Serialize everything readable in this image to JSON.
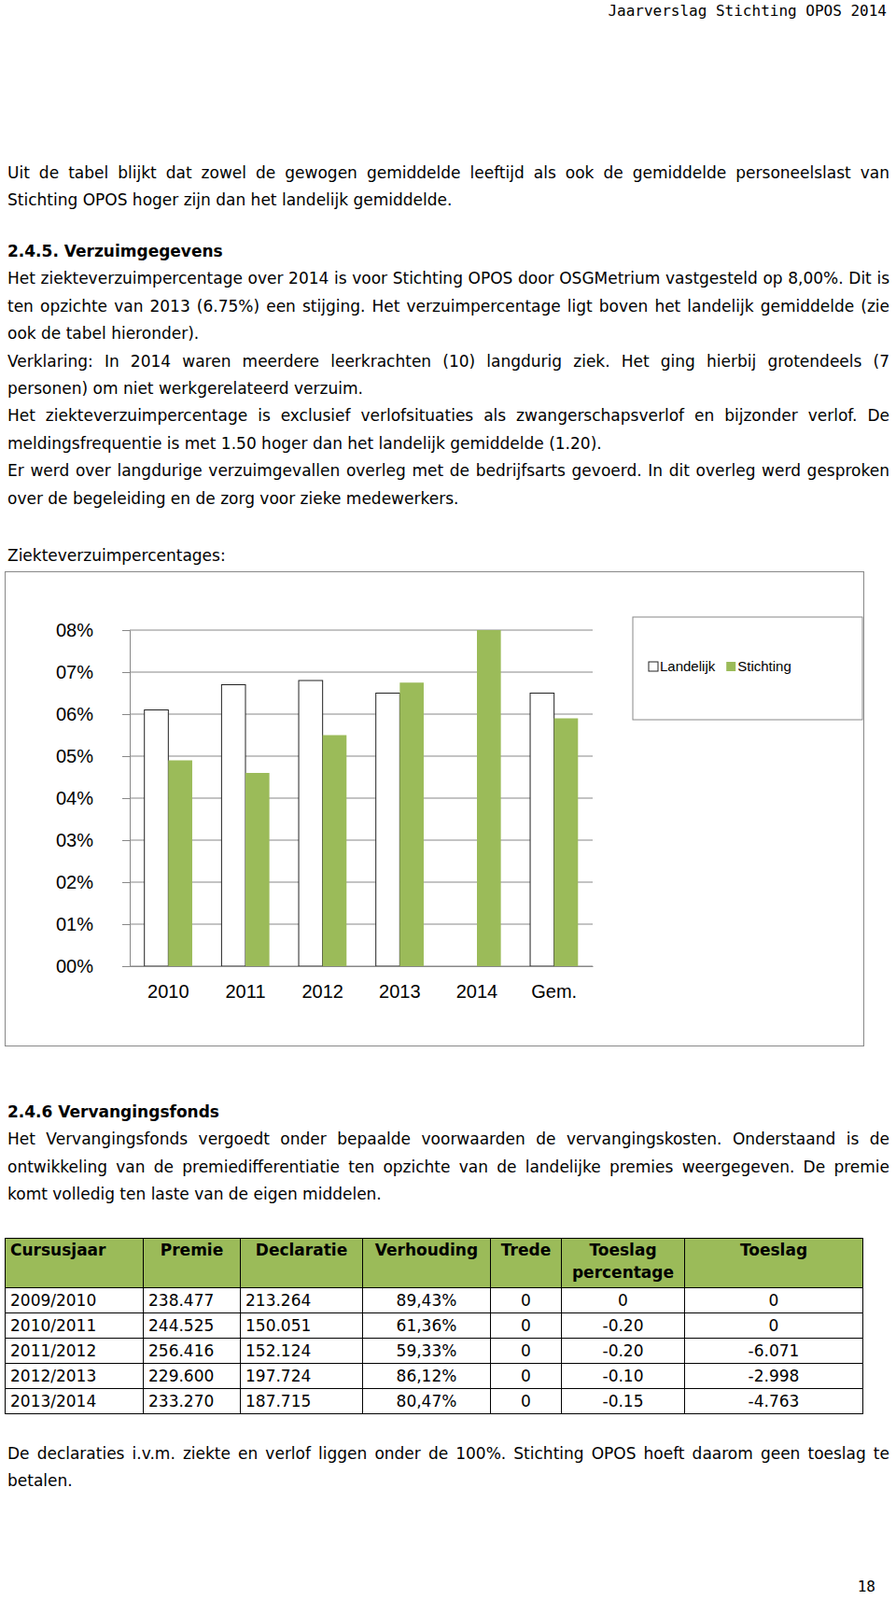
{
  "header": {
    "title": "Jaarverslag Stichting OPOS 2014"
  },
  "intro": "Uit de tabel blijkt dat zowel de gewogen gemiddelde leeftijd als ook de gemiddelde personeelslast van Stichting OPOS hoger zijn dan het landelijk gemiddelde.",
  "section_1": {
    "heading": "2.4.5. Verzuimgegevens",
    "paragraphs": [
      "Het ziekteverzuimpercentage over 2014 is voor Stichting OPOS door OSGMetrium vastgesteld op 8,00%. Dit is ten opzichte van 2013 (6.75%) een stijging. Het verzuimpercentage ligt boven het landelijk gemiddelde (zie ook de tabel hieronder).",
      "Verklaring: In 2014 waren meerdere leerkrachten (10) langdurig ziek. Het ging hierbij grotendeels (7 personen) om niet werkgerelateerd verzuim.",
      "Het ziekteverzuimpercentage is exclusief verlofsituaties als zwangerschapsverlof en bijzonder verlof. De meldingsfrequentie is met 1.50 hoger dan het landelijk gemiddelde (1.20).",
      "Er werd over langdurige verzuimgevallen overleg met de bedrijfsarts gevoerd. In dit overleg werd gesproken over de begeleiding en de zorg voor zieke medewerkers."
    ]
  },
  "chart_data": {
    "type": "bar",
    "title": "Ziekteverzuimpercentages:",
    "categories": [
      "2010",
      "2011",
      "2012",
      "2013",
      "2014",
      "Gem."
    ],
    "series": [
      {
        "name": "Landelijk",
        "color": "#ffffff",
        "values": [
          6.1,
          6.7,
          6.8,
          6.5,
          null,
          6.5
        ]
      },
      {
        "name": "Stichting",
        "color": "#9bbb59",
        "values": [
          4.9,
          4.6,
          5.5,
          6.75,
          8.0,
          5.9
        ]
      }
    ],
    "ylim": [
      0,
      8
    ],
    "yticks": [
      {
        "value": 0,
        "label": "00%"
      },
      {
        "value": 1,
        "label": "01%"
      },
      {
        "value": 2,
        "label": "02%"
      },
      {
        "value": 3,
        "label": "03%"
      },
      {
        "value": 4,
        "label": "04%"
      },
      {
        "value": 5,
        "label": "05%"
      },
      {
        "value": 6,
        "label": "06%"
      },
      {
        "value": 7,
        "label": "07%"
      },
      {
        "value": 8,
        "label": "08%"
      }
    ],
    "grid": true,
    "legend": "right"
  },
  "section_2": {
    "heading": "2.4.6 Vervangingsfonds",
    "paragraphs": [
      "Het Vervangingsfonds vergoedt onder bepaalde voorwaarden de vervangingskosten. Onderstaand is de ontwikkeling van de premiedifferentiatie ten opzichte van de landelijke premies weergegeven. De premie komt volledig ten laste van de eigen middelen."
    ]
  },
  "table": {
    "header": [
      "Cursusjaar",
      "Premie",
      "Declaratie",
      "Verhouding",
      "Trede",
      "Toeslag percentage",
      "Toeslag"
    ],
    "rows": [
      [
        "2009/2010",
        "238.477",
        "213.264",
        "89,43%",
        "0",
        "0",
        "0"
      ],
      [
        "2010/2011",
        "244.525",
        "150.051",
        "61,36%",
        "0",
        "-0.20",
        "0"
      ],
      [
        "2011/2012",
        "256.416",
        "152.124",
        "59,33%",
        "0",
        "-0.20",
        "-6.071"
      ],
      [
        "2012/2013",
        "229.600",
        "197.724",
        "86,12%",
        "0",
        "-0.10",
        "-2.998"
      ],
      [
        "2013/2014",
        "233.270",
        "187.715",
        "80,47%",
        "0",
        "-0.15",
        "-4.763"
      ]
    ]
  },
  "closing": "De declaraties i.v.m. ziekte en verlof liggen onder de 100%. Stichting OPOS hoeft daarom geen toeslag te betalen.",
  "page_number": "18"
}
